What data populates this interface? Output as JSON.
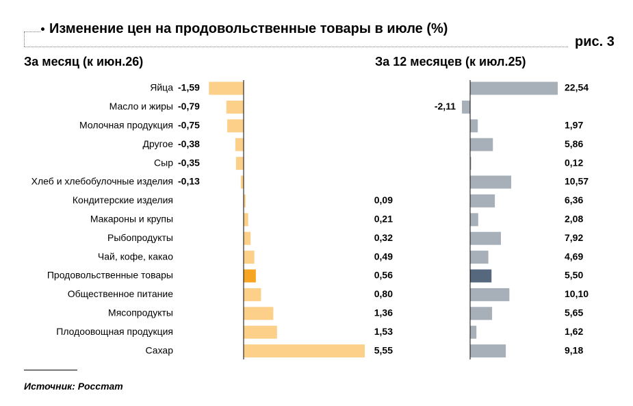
{
  "header": {
    "title": "Изменение цен на продовольственные товары в июле (%)",
    "figure_label": "рис. 3"
  },
  "source": "Источник: Росстат",
  "colors": {
    "left_bar": "#fdd08a",
    "left_highlight": "#f7a623",
    "right_bar": "#a7b0b8",
    "right_highlight": "#56687e",
    "axis": "#000000"
  },
  "chart_data": [
    {
      "type": "bar",
      "orientation": "horizontal",
      "title": "За месяц (к июн.26)",
      "categories": [
        "Яйца",
        "Масло и жиры",
        "Молочная продукция",
        "Другое",
        "Сыр",
        "Хлеб и хлебобулочные изделия",
        "Кондитерские изделия",
        "Макароны и крупы",
        "Рыбопродукты",
        "Чай, кофе, какао",
        "Продовольственные товары",
        "Общественное питание",
        "Мясопродукты",
        "Плодоовощная продукция",
        "Сахар"
      ],
      "values": [
        -1.59,
        -0.79,
        -0.75,
        -0.38,
        -0.35,
        -0.13,
        0.09,
        0.21,
        0.32,
        0.49,
        0.56,
        0.8,
        1.36,
        1.53,
        5.55
      ],
      "labels": [
        "-1,59",
        "-0,79",
        "-0,75",
        "-0,38",
        "-0,35",
        "-0,13",
        "0,09",
        "0,21",
        "0,32",
        "0,49",
        "0,56",
        "0,80",
        "1,36",
        "1,53",
        "5,55"
      ],
      "highlight": "Продовольственные товары",
      "grid": false
    },
    {
      "type": "bar",
      "orientation": "horizontal",
      "title": "За 12 месяцев (к июл.25)",
      "categories": [
        "Яйца",
        "Масло и жиры",
        "Молочная продукция",
        "Другое",
        "Сыр",
        "Хлеб и хлебобулочные изделия",
        "Кондитерские изделия",
        "Макароны и крупы",
        "Рыбопродукты",
        "Чай, кофе, какао",
        "Продовольственные товары",
        "Общественное питание",
        "Мясопродукты",
        "Плодоовощная продукция",
        "Сахар"
      ],
      "values": [
        22.54,
        -2.11,
        1.97,
        5.86,
        0.12,
        10.57,
        6.36,
        2.08,
        7.92,
        4.69,
        5.5,
        10.1,
        5.65,
        1.62,
        9.18
      ],
      "labels": [
        "22,54",
        "-2,11",
        "1,97",
        "5,86",
        "0,12",
        "10,57",
        "6,36",
        "2,08",
        "7,92",
        "4,69",
        "5,50",
        "10,10",
        "5,65",
        "1,62",
        "9,18"
      ],
      "highlight": "Продовольственные товары",
      "grid": false
    }
  ]
}
